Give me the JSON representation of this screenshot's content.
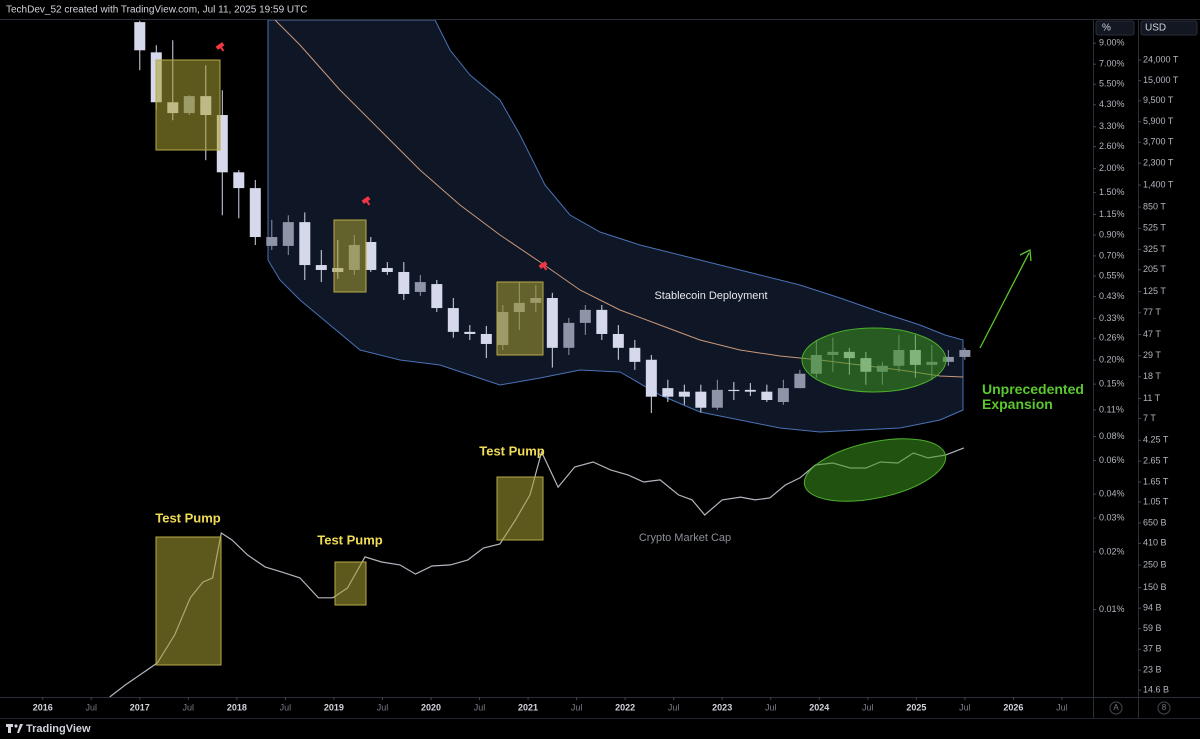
{
  "header": {
    "attribution": "TechDev_52 created with TradingView.com, Jul 11, 2025 19:59 UTC"
  },
  "footer": {
    "brand": "TradingView"
  },
  "controls": {
    "auto": "A",
    "log": "8"
  },
  "chart_data": {
    "type": "candlestick",
    "log_scale": true,
    "up_color": "#8f94a8",
    "down_color": "#d6d9ec",
    "y_axis_label": "%",
    "y2_axis_label": "USD",
    "annotations": [
      "Test Pump",
      "Test Pump",
      "Test Pump",
      "Stablecoin Deployment",
      "Unprecedented Expansion"
    ],
    "x": [
      2017.0,
      2017.17,
      2017.34,
      2017.51,
      2017.68,
      2017.85,
      2018.02,
      2018.19,
      2018.36,
      2018.53,
      2018.7,
      2018.87,
      2019.04,
      2019.21,
      2019.38,
      2019.55,
      2019.72,
      2019.89,
      2020.06,
      2020.23,
      2020.4,
      2020.57,
      2020.74,
      2020.91,
      2021.08,
      2021.25,
      2021.42,
      2021.59,
      2021.76,
      2021.93,
      2022.1,
      2022.27,
      2022.44,
      2022.61,
      2022.78,
      2022.95,
      2023.12,
      2023.29,
      2023.46,
      2023.63,
      2023.8,
      2023.97,
      2024.14,
      2024.31,
      2024.48,
      2024.65,
      2024.82,
      2024.99,
      2025.16,
      2025.33,
      2025.5
    ],
    "open": [
      11.6,
      8.07,
      4.43,
      3.89,
      4.77,
      3.8,
      1.91,
      1.58,
      0.789,
      0.789,
      1.05,
      0.627,
      0.605,
      0.591,
      0.827,
      0.605,
      0.577,
      0.454,
      0.499,
      0.374,
      0.281,
      0.274,
      0.24,
      0.357,
      0.398,
      0.422,
      0.232,
      0.313,
      0.366,
      0.274,
      0.232,
      0.201,
      0.143,
      0.137,
      0.137,
      0.113,
      0.14,
      0.14,
      0.137,
      0.121,
      0.143,
      0.17,
      0.213,
      0.221,
      0.205,
      0.174,
      0.187,
      0.226,
      0.189,
      0.196,
      0.208
    ],
    "high": [
      11.8,
      8.79,
      9.33,
      4.82,
      6.91,
      5.12,
      1.96,
      1.74,
      1.08,
      1.14,
      1.18,
      0.751,
      0.847,
      0.9,
      0.878,
      0.65,
      0.65,
      0.557,
      0.524,
      0.422,
      0.305,
      0.302,
      0.388,
      0.511,
      0.494,
      0.449,
      0.332,
      0.388,
      0.388,
      0.305,
      0.255,
      0.213,
      0.158,
      0.149,
      0.149,
      0.158,
      0.154,
      0.152,
      0.149,
      0.158,
      0.178,
      0.255,
      0.262,
      0.232,
      0.221,
      0.196,
      0.271,
      0.271,
      0.24,
      0.226,
      0.232
    ],
    "low": [
      6.51,
      4.03,
      3.57,
      3.8,
      2.21,
      1.14,
      1.1,
      0.798,
      0.751,
      0.707,
      0.524,
      0.511,
      0.531,
      0.557,
      0.577,
      0.557,
      0.412,
      0.433,
      0.357,
      0.262,
      0.255,
      0.205,
      0.226,
      0.288,
      0.357,
      0.183,
      0.213,
      0.271,
      0.255,
      0.201,
      0.178,
      0.106,
      0.121,
      0.117,
      0.107,
      0.11,
      0.124,
      0.13,
      0.121,
      0.117,
      0.143,
      0.162,
      0.174,
      0.168,
      0.149,
      0.149,
      0.174,
      0.162,
      0.158,
      0.187,
      0.201
    ],
    "close": [
      8.27,
      4.43,
      3.89,
      4.77,
      3.8,
      1.91,
      1.58,
      0.878,
      0.878,
      1.05,
      0.627,
      0.591,
      0.577,
      0.798,
      0.591,
      0.577,
      0.443,
      0.511,
      0.374,
      0.281,
      0.274,
      0.243,
      0.357,
      0.398,
      0.422,
      0.232,
      0.313,
      0.366,
      0.274,
      0.232,
      0.196,
      0.129,
      0.129,
      0.129,
      0.113,
      0.14,
      0.138,
      0.137,
      0.124,
      0.143,
      0.17,
      0.213,
      0.221,
      0.205,
      0.174,
      0.187,
      0.226,
      0.189,
      0.196,
      0.208,
      0.226
    ],
    "series": [
      {
        "name": "Crypto Market Cap",
        "type": "line",
        "axis": "y2",
        "color": "#b2b5be",
        "x": [
          2016.69,
          2016.85,
          2017.0,
          2017.18,
          2017.36,
          2017.52,
          2017.65,
          2017.75,
          2017.84,
          2017.95,
          2018.11,
          2018.29,
          2018.46,
          2018.65,
          2018.84,
          2018.99,
          2019.14,
          2019.32,
          2019.49,
          2019.68,
          2019.84,
          2020.01,
          2020.2,
          2020.38,
          2020.54,
          2020.71,
          2020.87,
          2021.02,
          2021.14,
          2021.31,
          2021.48,
          2021.67,
          2021.85,
          2022.03,
          2022.19,
          2022.36,
          2022.55,
          2022.69,
          2022.82,
          2023.0,
          2023.19,
          2023.34,
          2023.49,
          2023.65,
          2023.8,
          2023.96,
          2024.14,
          2024.32,
          2024.48,
          2024.63,
          2024.81,
          2024.97,
          2025.12,
          2025.3,
          2025.49
        ],
        "values": [
          12500000000.0,
          16400000000.0,
          20600000000.0,
          27100000000.0,
          51200000000.0,
          119000000000.0,
          170000000000.0,
          187000000000.0,
          518000000000.0,
          442000000000.0,
          315000000000.0,
          240000000000.0,
          214000000000.0,
          187000000000.0,
          119000000000.0,
          119000000000.0,
          149000000000.0,
          301000000000.0,
          268000000000.0,
          251000000000.0,
          204000000000.0,
          245000000000.0,
          251000000000.0,
          281000000000.0,
          369000000000.0,
          404000000000.0,
          697000000000.0,
          1230000000000.0,
          3260000000000.0,
          1470000000000.0,
          2320000000000.0,
          2600000000000.0,
          2170000000000.0,
          1940000000000.0,
          1650000000000.0,
          1730000000000.0,
          1230000000000.0,
          1100000000000.0,
          780000000000.0,
          1100000000000.0,
          1170000000000.0,
          1100000000000.0,
          1150000000000.0,
          1540000000000.0,
          1810000000000.0,
          2430000000000.0,
          2540000000000.0,
          2270000000000.0,
          2270000000000.0,
          2600000000000.0,
          2540000000000.0,
          3190000000000.0,
          2850000000000.0,
          3050000000000.0,
          3580000000000.0
        ]
      }
    ],
    "xlim": [
      2015.56,
      2026.82
    ],
    "xticks": [
      2016,
      {
        "value": 2016.5,
        "label": "Jul"
      },
      2017,
      {
        "value": 2017.5,
        "label": "Jul"
      },
      2018,
      {
        "value": 2018.5,
        "label": "Jul"
      },
      2019,
      {
        "value": 2019.5,
        "label": "Jul"
      },
      2020,
      {
        "value": 2020.5,
        "label": "Jul"
      },
      2021,
      {
        "value": 2021.5,
        "label": "Jul"
      },
      2022,
      {
        "value": 2022.5,
        "label": "Jul"
      },
      2023,
      {
        "value": 2023.5,
        "label": "Jul"
      },
      2024,
      {
        "value": 2024.5,
        "label": "Jul"
      },
      2025,
      {
        "value": 2025.5,
        "label": "Jul"
      },
      2026,
      {
        "value": 2026.5,
        "label": "Jul"
      }
    ],
    "ylim": [
      0.0035,
      11.9
    ],
    "yticks": [
      {
        "value": 9,
        "label": "9.00%"
      },
      {
        "value": 7,
        "label": "7.00%"
      },
      {
        "value": 5.5,
        "label": "5.50%"
      },
      {
        "value": 4.3,
        "label": "4.30%"
      },
      {
        "value": 3.3,
        "label": "3.30%"
      },
      {
        "value": 2.6,
        "label": "2.60%"
      },
      {
        "value": 2,
        "label": "2.00%"
      },
      {
        "value": 1.5,
        "label": "1.50%"
      },
      {
        "value": 1.15,
        "label": "1.15%"
      },
      {
        "value": 0.9,
        "label": "0.90%"
      },
      {
        "value": 0.7,
        "label": "0.70%"
      },
      {
        "value": 0.55,
        "label": "0.55%"
      },
      {
        "value": 0.43,
        "label": "0.43%"
      },
      {
        "value": 0.33,
        "label": "0.33%"
      },
      {
        "value": 0.26,
        "label": "0.26%"
      },
      {
        "value": 0.2,
        "label": "0.20%"
      },
      {
        "value": 0.15,
        "label": "0.15%"
      },
      {
        "value": 0.11,
        "label": "0.11%"
      },
      {
        "value": 0.08,
        "label": "0.08%"
      },
      {
        "value": 0.06,
        "label": "0.06%"
      },
      {
        "value": 0.04,
        "label": "0.04%"
      },
      {
        "value": 0.03,
        "label": "0.03%"
      },
      {
        "value": 0.02,
        "label": "0.02%"
      },
      {
        "value": 0.01,
        "label": "0.01%"
      }
    ],
    "y2lim": [
      12500000000.0,
      5.95e+16
    ],
    "y2ticks": [
      {
        "value": 2.4e+16,
        "label": "24,000 T"
      },
      {
        "value": 1.5e+16,
        "label": "15,000 T"
      },
      {
        "value": 9500000000000000.0,
        "label": "9,500 T"
      },
      {
        "value": 5900000000000000.0,
        "label": "5,900 T"
      },
      {
        "value": 3700000000000000.0,
        "label": "3,700 T"
      },
      {
        "value": 2300000000000000.0,
        "label": "2,300 T"
      },
      {
        "value": 1400000000000000.0,
        "label": "1,400 T"
      },
      {
        "value": 850000000000000.0,
        "label": "850 T"
      },
      {
        "value": 525000000000000.0,
        "label": "525 T"
      },
      {
        "value": 325000000000000.0,
        "label": "325 T"
      },
      {
        "value": 205000000000000.0,
        "label": "205 T"
      },
      {
        "value": 125000000000000.0,
        "label": "125 T"
      },
      {
        "value": 77000000000000.0,
        "label": "77 T"
      },
      {
        "value": 47000000000000.0,
        "label": "47 T"
      },
      {
        "value": 29000000000000.0,
        "label": "29 T"
      },
      {
        "value": 18000000000000.0,
        "label": "18 T"
      },
      {
        "value": 11000000000000.0,
        "label": "11 T"
      },
      {
        "value": 7000000000000.0,
        "label": "7 T"
      },
      {
        "value": 4250000000000.0,
        "label": "4.25 T"
      },
      {
        "value": 2650000000000.0,
        "label": "2.65 T"
      },
      {
        "value": 1650000000000.0,
        "label": "1.65 T"
      },
      {
        "value": 1050000000000.0,
        "label": "1.05 T"
      },
      {
        "value": 650000000000.0,
        "label": "650 B"
      },
      {
        "value": 410000000000.0,
        "label": "410 B"
      },
      {
        "value": 250000000000.0,
        "label": "250 B"
      },
      {
        "value": 150000000000.0,
        "label": "150 B"
      },
      {
        "value": 94000000000.0,
        "label": "94 B"
      },
      {
        "value": 59000000000.0,
        "label": "59 B"
      },
      {
        "value": 37000000000.0,
        "label": "37 B"
      },
      {
        "value": 23000000000.0,
        "label": "23 B"
      },
      {
        "value": 14600000000.0,
        "label": "14.6 B"
      }
    ]
  }
}
